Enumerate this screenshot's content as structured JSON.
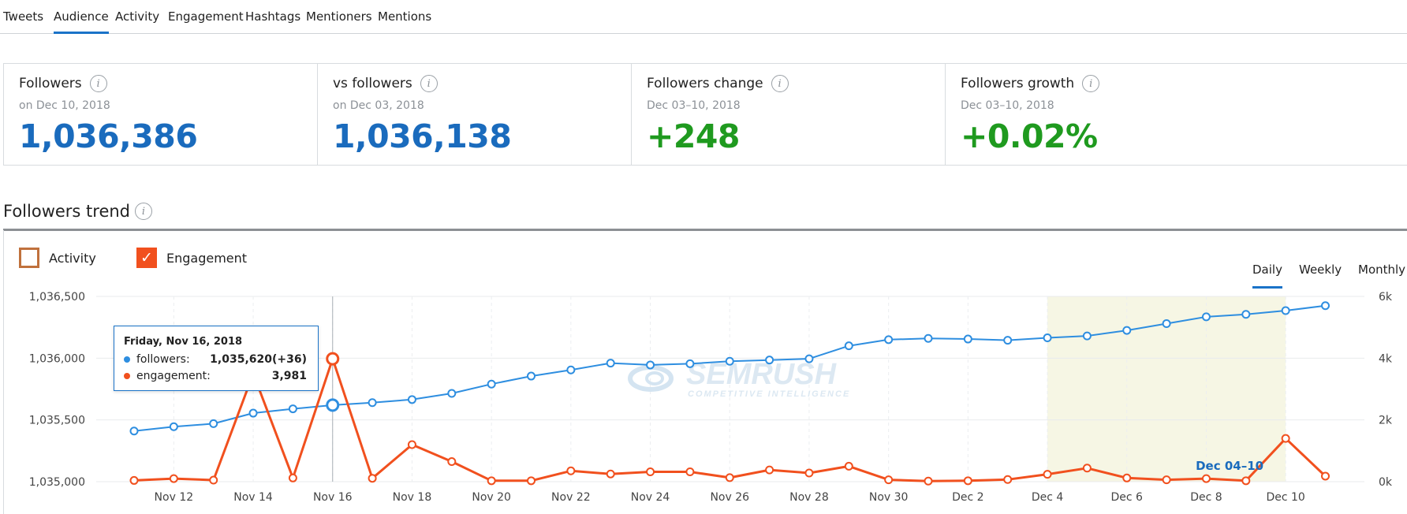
{
  "tabs": [
    {
      "label": "Tweets",
      "active": false
    },
    {
      "label": "Audience",
      "active": true
    },
    {
      "label": "Activity",
      "active": false
    },
    {
      "label": "Engagement",
      "active": false
    },
    {
      "label": "Hashtags",
      "active": false
    },
    {
      "label": "Mentioners",
      "active": false
    },
    {
      "label": "Mentions",
      "active": false
    }
  ],
  "cards": [
    {
      "title": "Followers",
      "sub": "on Dec 10, 2018",
      "value": "1,036,386",
      "color": "#1a6bbd"
    },
    {
      "title": "vs followers",
      "sub": "on Dec 03, 2018",
      "value": "1,036,138",
      "color": "#1a6bbd"
    },
    {
      "title": "Followers change",
      "sub": "Dec 03–10, 2018",
      "value": "+248",
      "color": "#1f9a1f"
    },
    {
      "title": "Followers growth",
      "sub": "Dec 03–10, 2018",
      "value": "+0.02%",
      "color": "#1f9a1f"
    }
  ],
  "info_icon_glyph": "i",
  "section": {
    "title": "Followers trend"
  },
  "legend": [
    {
      "label": "Activity",
      "checked": false,
      "color": "#c0713d"
    },
    {
      "label": "Engagement",
      "checked": true,
      "color": "#f1501e"
    }
  ],
  "checkmark_glyph": "✓",
  "periods": [
    {
      "label": "Daily",
      "active": true
    },
    {
      "label": "Weekly",
      "active": false
    },
    {
      "label": "Monthly",
      "active": false
    }
  ],
  "tooltip": {
    "date": "Friday, Nov 16, 2018",
    "followers_label": "followers:",
    "followers_value": "1,035,620(+36)",
    "engagement_label": "engagement:",
    "engagement_value": "3,981"
  },
  "watermark": {
    "brand": "SEMRUSH",
    "tagline": "COMPETITIVE INTELLIGENCE"
  },
  "colors": {
    "accent": "#1a73c8",
    "followers": "#2e8ee0",
    "engagement": "#f1501e",
    "highlight": "#f6f6e4"
  },
  "chart_data": {
    "type": "line",
    "x": [
      "Nov 11",
      "Nov 12",
      "Nov 13",
      "Nov 14",
      "Nov 15",
      "Nov 16",
      "Nov 17",
      "Nov 18",
      "Nov 19",
      "Nov 20",
      "Nov 21",
      "Nov 22",
      "Nov 23",
      "Nov 24",
      "Nov 25",
      "Nov 26",
      "Nov 27",
      "Nov 28",
      "Nov 29",
      "Nov 30",
      "Dec 1",
      "Dec 2",
      "Dec 3",
      "Dec 4",
      "Dec 5",
      "Dec 6",
      "Dec 7",
      "Dec 8",
      "Dec 9",
      "Dec 10",
      "Dec 11"
    ],
    "x_tick_labels": [
      "Nov 12",
      "Nov 14",
      "Nov 16",
      "Nov 18",
      "Nov 20",
      "Nov 22",
      "Nov 24",
      "Nov 26",
      "Nov 28",
      "Nov 30",
      "Dec 2",
      "Dec 4",
      "Dec 6",
      "Dec 8",
      "Dec 10"
    ],
    "series": [
      {
        "name": "followers",
        "axis": "left",
        "color": "#2e8ee0",
        "values": [
          1035410,
          1035445,
          1035470,
          1035555,
          1035590,
          1035620,
          1035640,
          1035665,
          1035715,
          1035790,
          1035855,
          1035905,
          1035960,
          1035945,
          1035955,
          1035975,
          1035985,
          1035995,
          1036100,
          1036150,
          1036160,
          1036155,
          1036145,
          1036165,
          1036180,
          1036225,
          1036280,
          1036335,
          1036355,
          1036385,
          1036425
        ]
      },
      {
        "name": "engagement",
        "axis": "right",
        "color": "#f1501e",
        "values": [
          40,
          100,
          50,
          3500,
          120,
          3981,
          110,
          1200,
          650,
          30,
          30,
          350,
          250,
          320,
          320,
          130,
          380,
          280,
          500,
          60,
          20,
          30,
          70,
          240,
          440,
          120,
          60,
          100,
          30,
          1400,
          180
        ]
      }
    ],
    "y_left": {
      "ticks": [
        "1,035,000",
        "1,035,500",
        "1,036,000",
        "1,036,500"
      ],
      "range": [
        1035000,
        1036500
      ]
    },
    "y_right": {
      "ticks": [
        "0k",
        "2k",
        "4k",
        "6k"
      ],
      "range": [
        0,
        6000
      ]
    },
    "highlight": {
      "from": "Dec 4",
      "to": "Dec 10",
      "label": "Dec 04–10"
    },
    "selected": "Nov 16",
    "grid": true
  }
}
